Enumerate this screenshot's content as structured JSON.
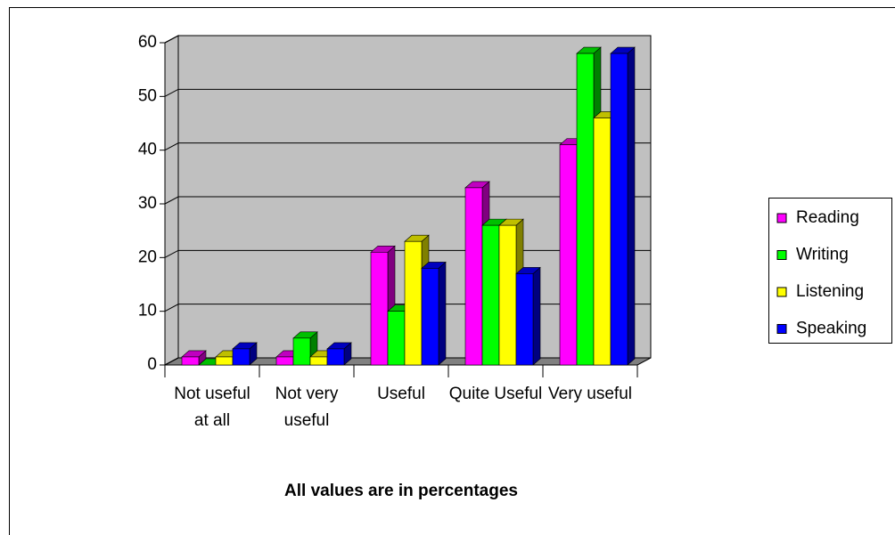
{
  "chart_data": {
    "type": "bar3d",
    "x_label": "All values are in percentages",
    "categories": [
      "Not useful at all",
      "Not very useful",
      "Useful",
      "Quite Useful",
      "Very useful"
    ],
    "series": [
      {
        "name": "Reading",
        "color": "#ff00ff",
        "values": [
          1.5,
          1.5,
          21,
          33,
          41
        ]
      },
      {
        "name": "Writing",
        "color": "#00ff00",
        "values": [
          0,
          5,
          10,
          26,
          58
        ]
      },
      {
        "name": "Listening",
        "color": "#ffff00",
        "values": [
          1.5,
          1.5,
          23,
          26,
          46
        ]
      },
      {
        "name": "Speaking",
        "color": "#0000ff",
        "values": [
          3,
          3,
          18,
          17,
          58
        ]
      }
    ],
    "ylim": [
      0,
      60
    ],
    "yticks": [
      0,
      10,
      20,
      30,
      40,
      50,
      60
    ],
    "grid": true,
    "legend": "right"
  }
}
